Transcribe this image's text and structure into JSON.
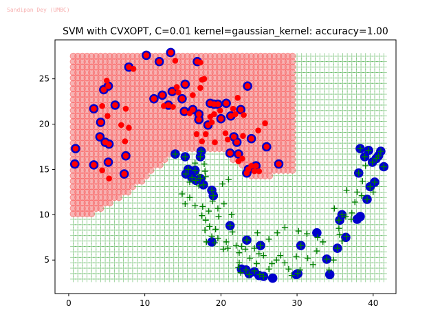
{
  "watermark": "Sandipan Dey (UMBC)",
  "colors": {
    "region_pos": "#f07474",
    "region_pos_edge": "#ff5050",
    "region_neg": "#2ca02c",
    "class_pos": "#ff0000",
    "class_neg": "#008000",
    "support_vector": "#0000cc"
  },
  "chart_data": {
    "type": "scatter",
    "title": "SVM with CVXOPT, C=0.01 kernel=gaussian_kernel: accuracy=1.00",
    "xlabel": "",
    "ylabel": "",
    "xlim": [
      -1.8,
      43.0
    ],
    "ylim": [
      1.3,
      29.3
    ],
    "xticks": [
      0,
      10,
      20,
      30,
      40
    ],
    "yticks": [
      5,
      10,
      15,
      20,
      25
    ],
    "grid": false,
    "decision_grid": {
      "x_start": 0.6,
      "x_stop": 41.4,
      "x_step": 0.6,
      "y_start": 2.9,
      "y_stop": 28.0,
      "y_step": 0.6,
      "region_rule": "points above the moon boundary are class +1 (red circles), the rest class -1 (green plus)"
    },
    "series": [
      {
        "marker": "circle",
        "color": "#ff0000",
        "points": [
          [
            0.9,
            17.3
          ],
          [
            0.8,
            15.6
          ],
          [
            3.3,
            15.5
          ],
          [
            5.2,
            15.8
          ],
          [
            4.4,
            14.9
          ],
          [
            5.3,
            14.0
          ],
          [
            7.3,
            14.5
          ],
          [
            7.5,
            16.5
          ],
          [
            4.1,
            18.6
          ],
          [
            4.8,
            18.0
          ],
          [
            5.3,
            17.8
          ],
          [
            4.2,
            20.2
          ],
          [
            3.3,
            21.7
          ],
          [
            4.4,
            22.0
          ],
          [
            6.1,
            22.1
          ],
          [
            7.5,
            21.7
          ],
          [
            5.1,
            20.9
          ],
          [
            6.9,
            19.9
          ],
          [
            7.9,
            19.6
          ],
          [
            7.4,
            18.1
          ],
          [
            4.6,
            23.8
          ],
          [
            5.2,
            24.2
          ],
          [
            5.0,
            24.8
          ],
          [
            7.9,
            26.3
          ],
          [
            8.5,
            26.1
          ],
          [
            10.2,
            27.6
          ],
          [
            11.9,
            26.9
          ],
          [
            13.4,
            27.9
          ],
          [
            14.0,
            27.0
          ],
          [
            16.9,
            26.9
          ],
          [
            17.3,
            26.8
          ],
          [
            15.3,
            24.4
          ],
          [
            14.4,
            23.5
          ],
          [
            14.2,
            24.1
          ],
          [
            11.2,
            22.8
          ],
          [
            12.5,
            22.0
          ],
          [
            13.1,
            22.1
          ],
          [
            12.3,
            23.2
          ],
          [
            13.6,
            23.6
          ],
          [
            13.7,
            21.9
          ],
          [
            14.9,
            22.8
          ],
          [
            16.3,
            21.6
          ],
          [
            16.3,
            23.2
          ],
          [
            15.2,
            21.4
          ],
          [
            15.9,
            21.2
          ],
          [
            17.1,
            21.1
          ],
          [
            17.1,
            20.5
          ],
          [
            17.5,
            24.9
          ],
          [
            17.8,
            25.0
          ],
          [
            18.6,
            22.3
          ],
          [
            19.1,
            22.2
          ],
          [
            19.6,
            22.2
          ],
          [
            19.1,
            21.1
          ],
          [
            18.6,
            20.8
          ],
          [
            19.9,
            21.5
          ],
          [
            18.8,
            20.2
          ],
          [
            18.3,
            19.9
          ],
          [
            20.0,
            20.6
          ],
          [
            21.3,
            20.9
          ],
          [
            21.6,
            21.7
          ],
          [
            21.9,
            21.1
          ],
          [
            22.6,
            21.6
          ],
          [
            23.0,
            21.0
          ],
          [
            22.2,
            22.9
          ],
          [
            23.5,
            24.2
          ],
          [
            20.7,
            22.3
          ],
          [
            21.7,
            18.6
          ],
          [
            20.6,
            19.0
          ],
          [
            22.9,
            18.7
          ],
          [
            22.1,
            18.0
          ],
          [
            24.0,
            18.4
          ],
          [
            24.9,
            19.3
          ],
          [
            25.8,
            20.1
          ],
          [
            26.0,
            17.5
          ],
          [
            22.8,
            16.2
          ],
          [
            21.2,
            16.8
          ],
          [
            22.3,
            16.7
          ],
          [
            22.3,
            15.9
          ],
          [
            23.6,
            15.0
          ],
          [
            23.4,
            14.6
          ],
          [
            24.0,
            15.4
          ],
          [
            24.4,
            14.8
          ],
          [
            24.6,
            15.4
          ],
          [
            25.0,
            14.8
          ],
          [
            27.6,
            15.6
          ],
          [
            19.2,
            18.0
          ],
          [
            20.9,
            18.3
          ],
          [
            16.8,
            18.9
          ],
          [
            17.5,
            18.1
          ],
          [
            18.0,
            18.9
          ],
          [
            17.3,
            24.0
          ]
        ]
      },
      {
        "marker": "plus",
        "color": "#008000",
        "points": [
          [
            14.0,
            16.7
          ],
          [
            15.3,
            16.4
          ],
          [
            15.7,
            15.0
          ],
          [
            15.4,
            14.5
          ],
          [
            16.2,
            14.1
          ],
          [
            15.9,
            13.6
          ],
          [
            16.7,
            13.8
          ],
          [
            16.6,
            14.9
          ],
          [
            17.1,
            14.4
          ],
          [
            17.3,
            14.0
          ],
          [
            17.7,
            13.3
          ],
          [
            17.9,
            14.8
          ],
          [
            17.8,
            15.6
          ],
          [
            17.3,
            16.4
          ],
          [
            17.4,
            17.0
          ],
          [
            16.6,
            15.7
          ],
          [
            18.0,
            14.2
          ],
          [
            17.1,
            13.2
          ],
          [
            14.9,
            12.3
          ],
          [
            15.9,
            11.9
          ],
          [
            15.3,
            11.2
          ],
          [
            16.6,
            11.0
          ],
          [
            17.6,
            10.9
          ],
          [
            18.8,
            12.7
          ],
          [
            19.0,
            12.1
          ],
          [
            18.9,
            11.5
          ],
          [
            18.4,
            10.4
          ],
          [
            17.5,
            9.9
          ],
          [
            18.0,
            9.4
          ],
          [
            18.5,
            8.7
          ],
          [
            19.3,
            8.4
          ],
          [
            17.9,
            8.3
          ],
          [
            18.8,
            7.6
          ],
          [
            18.1,
            7.0
          ],
          [
            19.2,
            6.9
          ],
          [
            19.6,
            7.4
          ],
          [
            20.7,
            7.0
          ],
          [
            20.3,
            6.2
          ],
          [
            20.9,
            6.3
          ],
          [
            21.2,
            8.8
          ],
          [
            21.5,
            8.1
          ],
          [
            22.0,
            6.6
          ],
          [
            22.7,
            6.5
          ],
          [
            22.4,
            5.8
          ],
          [
            23.4,
            7.2
          ],
          [
            23.2,
            6.2
          ],
          [
            24.4,
            6.3
          ],
          [
            25.2,
            6.6
          ],
          [
            25.0,
            5.7
          ],
          [
            25.6,
            5.5
          ],
          [
            23.8,
            5.2
          ],
          [
            22.4,
            4.7
          ],
          [
            22.3,
            4.2
          ],
          [
            22.6,
            3.6
          ],
          [
            23.3,
            3.9
          ],
          [
            23.7,
            3.4
          ],
          [
            24.4,
            3.8
          ],
          [
            24.7,
            4.6
          ],
          [
            25.1,
            3.4
          ],
          [
            25.6,
            3.2
          ],
          [
            26.3,
            4.0
          ],
          [
            26.7,
            4.6
          ],
          [
            27.3,
            5.0
          ],
          [
            27.8,
            5.5
          ],
          [
            28.4,
            4.7
          ],
          [
            28.9,
            4.0
          ],
          [
            29.3,
            3.3
          ],
          [
            30.1,
            3.5
          ],
          [
            30.4,
            3.9
          ],
          [
            29.9,
            5.4
          ],
          [
            30.5,
            6.6
          ],
          [
            31.4,
            5.2
          ],
          [
            32.1,
            4.5
          ],
          [
            32.6,
            6.0
          ],
          [
            33.4,
            7.0
          ],
          [
            33.9,
            5.1
          ],
          [
            34.2,
            3.9
          ],
          [
            34.8,
            5.0
          ],
          [
            35.3,
            6.3
          ],
          [
            35.6,
            7.8
          ],
          [
            35.9,
            7.1
          ],
          [
            36.5,
            7.6
          ],
          [
            36.4,
            9.8
          ],
          [
            35.5,
            9.4
          ],
          [
            35.9,
            10.0
          ],
          [
            37.1,
            9.5
          ],
          [
            37.6,
            11.4
          ],
          [
            38.5,
            12.1
          ],
          [
            37.9,
            12.5
          ],
          [
            39.2,
            11.7
          ],
          [
            39.6,
            13.1
          ],
          [
            40.2,
            13.6
          ],
          [
            40.0,
            12.5
          ],
          [
            38.6,
            13.7
          ],
          [
            38.1,
            14.6
          ],
          [
            39.0,
            15.4
          ],
          [
            38.9,
            16.4
          ],
          [
            39.9,
            15.8
          ],
          [
            40.7,
            16.5
          ],
          [
            41.4,
            15.3
          ],
          [
            41.0,
            17.0
          ],
          [
            39.4,
            17.1
          ],
          [
            38.3,
            17.3
          ],
          [
            40.4,
            16.2
          ],
          [
            36.5,
            12.7
          ],
          [
            37.2,
            10.2
          ],
          [
            34.9,
            10.7
          ],
          [
            35.5,
            8.5
          ],
          [
            32.7,
            7.5
          ],
          [
            31.3,
            7.9
          ],
          [
            30.2,
            8.2
          ],
          [
            28.4,
            8.6
          ],
          [
            27.4,
            8.0
          ],
          [
            26.3,
            7.3
          ],
          [
            24.8,
            8.0
          ],
          [
            19.7,
            9.8
          ],
          [
            19.6,
            10.7
          ],
          [
            20.4,
            11.2
          ],
          [
            21.4,
            10.0
          ],
          [
            20.2,
            13.4
          ],
          [
            21.0,
            13.9
          ]
        ]
      }
    ],
    "support_vectors": [
      [
        0.9,
        17.3
      ],
      [
        0.8,
        15.6
      ],
      [
        3.3,
        15.5
      ],
      [
        5.2,
        15.8
      ],
      [
        7.3,
        14.5
      ],
      [
        7.5,
        16.5
      ],
      [
        4.1,
        18.6
      ],
      [
        4.8,
        18.0
      ],
      [
        5.3,
        17.8
      ],
      [
        4.2,
        20.2
      ],
      [
        3.3,
        21.7
      ],
      [
        6.1,
        22.1
      ],
      [
        4.6,
        23.8
      ],
      [
        5.2,
        24.2
      ],
      [
        7.9,
        26.3
      ],
      [
        10.2,
        27.6
      ],
      [
        11.9,
        26.9
      ],
      [
        13.4,
        27.9
      ],
      [
        16.9,
        26.9
      ],
      [
        15.3,
        24.4
      ],
      [
        11.2,
        22.8
      ],
      [
        12.3,
        23.2
      ],
      [
        13.6,
        23.6
      ],
      [
        14.9,
        22.8
      ],
      [
        13.1,
        22.1
      ],
      [
        15.2,
        21.4
      ],
      [
        16.3,
        21.6
      ],
      [
        17.1,
        21.1
      ],
      [
        17.1,
        20.5
      ],
      [
        18.6,
        22.3
      ],
      [
        19.1,
        22.2
      ],
      [
        19.6,
        22.2
      ],
      [
        18.3,
        19.9
      ],
      [
        20.0,
        20.6
      ],
      [
        21.3,
        20.9
      ],
      [
        22.6,
        21.6
      ],
      [
        23.5,
        24.2
      ],
      [
        20.7,
        22.3
      ],
      [
        22.1,
        18.0
      ],
      [
        24.0,
        18.4
      ],
      [
        26.0,
        17.5
      ],
      [
        21.2,
        16.8
      ],
      [
        22.3,
        16.7
      ],
      [
        23.6,
        15.0
      ],
      [
        23.4,
        14.6
      ],
      [
        24.6,
        15.4
      ],
      [
        27.6,
        15.6
      ],
      [
        21.7,
        18.6
      ],
      [
        14.0,
        16.7
      ],
      [
        15.3,
        16.4
      ],
      [
        15.7,
        15.0
      ],
      [
        15.4,
        14.5
      ],
      [
        16.2,
        14.1
      ],
      [
        16.7,
        13.8
      ],
      [
        16.6,
        14.9
      ],
      [
        17.3,
        14.0
      ],
      [
        17.7,
        13.3
      ],
      [
        17.4,
        17.0
      ],
      [
        17.3,
        16.4
      ],
      [
        18.8,
        12.7
      ],
      [
        19.0,
        12.1
      ],
      [
        21.2,
        8.8
      ],
      [
        18.8,
        7.0
      ],
      [
        23.4,
        7.2
      ],
      [
        25.2,
        6.6
      ],
      [
        22.7,
        4.0
      ],
      [
        23.3,
        3.9
      ],
      [
        23.7,
        3.5
      ],
      [
        24.4,
        3.7
      ],
      [
        25.0,
        3.3
      ],
      [
        25.6,
        3.2
      ],
      [
        26.8,
        3.0
      ],
      [
        30.1,
        3.5
      ],
      [
        30.5,
        6.6
      ],
      [
        29.9,
        3.4
      ],
      [
        32.6,
        8.0
      ],
      [
        33.9,
        5.1
      ],
      [
        34.3,
        3.4
      ],
      [
        35.3,
        6.3
      ],
      [
        36.4,
        7.5
      ],
      [
        35.6,
        9.4
      ],
      [
        35.9,
        10.0
      ],
      [
        37.9,
        9.5
      ],
      [
        38.3,
        9.8
      ],
      [
        39.2,
        11.7
      ],
      [
        39.6,
        13.1
      ],
      [
        40.2,
        13.6
      ],
      [
        38.1,
        14.6
      ],
      [
        38.9,
        16.4
      ],
      [
        39.9,
        15.8
      ],
      [
        40.7,
        16.5
      ],
      [
        41.4,
        15.3
      ],
      [
        41.0,
        17.0
      ],
      [
        39.4,
        17.1
      ],
      [
        38.3,
        17.3
      ],
      [
        40.4,
        16.2
      ]
    ]
  }
}
